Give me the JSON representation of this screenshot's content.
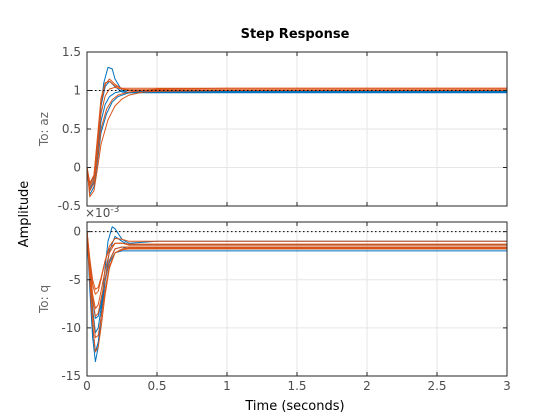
{
  "chart_data": {
    "type": "line",
    "title": "Step Response",
    "xlabel": "Time (seconds)",
    "ylabel": "Amplitude",
    "xlim": [
      0,
      3
    ],
    "x_ticks": [
      "0",
      "0.5",
      "1",
      "1.5",
      "2",
      "2.5",
      "3"
    ],
    "grid": true,
    "colors": {
      "series_a": "#0072bd",
      "series_b": "#d95319",
      "steady_state": "#000000"
    },
    "subplots": [
      {
        "output_label": "To: az",
        "ylim": [
          -0.5,
          1.5
        ],
        "y_ticks": [
          "-0.5",
          "0",
          "0.5",
          "1",
          "1.5"
        ],
        "steady_state": 1,
        "series": [
          {
            "color": "series_a",
            "x": [
              0,
              0.02,
              0.05,
              0.08,
              0.1,
              0.12,
              0.15,
              0.18,
              0.2,
              0.25,
              0.3,
              0.4,
              0.5,
              0.7,
              1.0,
              1.5,
              2.0,
              2.5,
              3.0
            ],
            "y": [
              0,
              -0.28,
              -0.18,
              0.3,
              0.8,
              1.1,
              1.3,
              1.28,
              1.15,
              1.0,
              0.97,
              0.97,
              0.97,
              0.97,
              0.97,
              0.97,
              0.97,
              0.97,
              0.97
            ]
          },
          {
            "color": "series_a",
            "x": [
              0,
              0.02,
              0.05,
              0.08,
              0.1,
              0.13,
              0.16,
              0.2,
              0.25,
              0.3,
              0.4,
              0.5,
              1.0,
              2.0,
              3.0
            ],
            "y": [
              0,
              -0.22,
              -0.12,
              0.4,
              0.8,
              1.05,
              1.12,
              1.05,
              0.98,
              0.97,
              0.98,
              0.98,
              0.98,
              0.98,
              0.98
            ]
          },
          {
            "color": "series_a",
            "x": [
              0,
              0.02,
              0.05,
              0.08,
              0.1,
              0.13,
              0.16,
              0.2,
              0.25,
              0.3,
              0.4,
              0.5,
              1.0,
              2.0,
              3.0
            ],
            "y": [
              0,
              -0.3,
              -0.2,
              0.25,
              0.6,
              0.82,
              0.92,
              0.97,
              0.99,
              1.0,
              1.0,
              1.0,
              1.0,
              1.0,
              1.0
            ]
          },
          {
            "color": "series_a",
            "x": [
              0,
              0.02,
              0.05,
              0.08,
              0.1,
              0.14,
              0.18,
              0.22,
              0.3,
              0.4,
              0.5,
              1.0,
              2.0,
              3.0
            ],
            "y": [
              0,
              -0.35,
              -0.25,
              0.15,
              0.45,
              0.7,
              0.85,
              0.92,
              0.97,
              0.99,
              0.99,
              0.99,
              0.99,
              0.99
            ]
          },
          {
            "color": "series_b",
            "x": [
              0,
              0.02,
              0.05,
              0.08,
              0.1,
              0.13,
              0.16,
              0.2,
              0.25,
              0.3,
              0.4,
              0.5,
              1.0,
              2.0,
              3.0
            ],
            "y": [
              0,
              -0.2,
              -0.1,
              0.45,
              0.85,
              1.08,
              1.15,
              1.08,
              1.02,
              1.0,
              1.0,
              1.02,
              1.03,
              1.03,
              1.03
            ]
          },
          {
            "color": "series_b",
            "x": [
              0,
              0.02,
              0.05,
              0.08,
              0.1,
              0.13,
              0.16,
              0.2,
              0.25,
              0.3,
              0.4,
              0.5,
              1.0,
              2.0,
              3.0
            ],
            "y": [
              0,
              -0.25,
              -0.15,
              0.35,
              0.7,
              0.93,
              1.02,
              1.04,
              1.02,
              1.01,
              1.01,
              1.01,
              1.01,
              1.01,
              1.01
            ]
          },
          {
            "color": "series_b",
            "x": [
              0,
              0.02,
              0.05,
              0.08,
              0.1,
              0.14,
              0.18,
              0.22,
              0.3,
              0.4,
              0.5,
              1.0,
              2.0,
              3.0
            ],
            "y": [
              0,
              -0.3,
              -0.2,
              0.2,
              0.5,
              0.76,
              0.88,
              0.94,
              0.98,
              1.0,
              1.0,
              1.0,
              1.0,
              1.0
            ]
          },
          {
            "color": "series_b",
            "x": [
              0,
              0.02,
              0.05,
              0.08,
              0.1,
              0.15,
              0.2,
              0.25,
              0.3,
              0.4,
              0.5,
              1.0,
              2.0,
              3.0
            ],
            "y": [
              0,
              -0.38,
              -0.3,
              0.05,
              0.3,
              0.62,
              0.8,
              0.89,
              0.94,
              0.98,
              0.99,
              1.0,
              1.0,
              1.0
            ]
          },
          {
            "color": "series_b",
            "x": [
              0,
              0.02,
              0.05,
              0.08,
              0.1,
              0.13,
              0.16,
              0.2,
              0.25,
              0.3,
              0.5,
              1.0,
              2.0,
              3.0
            ],
            "y": [
              0,
              -0.22,
              -0.1,
              0.5,
              0.9,
              1.1,
              1.12,
              1.06,
              1.03,
              1.03,
              1.03,
              1.03,
              1.03,
              1.03
            ]
          }
        ]
      },
      {
        "output_label": "To: q",
        "exponent_label": "×10",
        "exponent_power": "-3",
        "ylim": [
          -15,
          1
        ],
        "y_ticks": [
          "-15",
          "-10",
          "-5",
          "0"
        ],
        "steady_state": 0,
        "series": [
          {
            "color": "series_a",
            "x": [
              0,
              0.02,
              0.04,
              0.06,
              0.08,
              0.1,
              0.12,
              0.15,
              0.18,
              0.2,
              0.25,
              0.3,
              0.4,
              0.5,
              1.0,
              2.0,
              3.0
            ],
            "y": [
              0,
              -6,
              -11,
              -13.5,
              -12,
              -9,
              -5,
              -1,
              0.5,
              0.3,
              -0.8,
              -1.2,
              -1.1,
              -1.0,
              -1.0,
              -1.0,
              -1.0
            ]
          },
          {
            "color": "series_a",
            "x": [
              0,
              0.02,
              0.04,
              0.06,
              0.08,
              0.1,
              0.13,
              0.16,
              0.2,
              0.25,
              0.3,
              0.5,
              1.0,
              2.0,
              3.0
            ],
            "y": [
              0,
              -5,
              -10,
              -12.5,
              -11.5,
              -9,
              -5,
              -2,
              -0.5,
              -1.0,
              -1.4,
              -1.4,
              -1.4,
              -1.4,
              -1.4
            ]
          },
          {
            "color": "series_a",
            "x": [
              0,
              0.02,
              0.04,
              0.06,
              0.08,
              0.1,
              0.13,
              0.16,
              0.2,
              0.25,
              0.3,
              0.5,
              1.0,
              2.0,
              3.0
            ],
            "y": [
              0,
              -4,
              -8,
              -10.5,
              -10,
              -8,
              -5,
              -3,
              -1.8,
              -1.6,
              -1.8,
              -1.8,
              -1.8,
              -1.8,
              -1.8
            ]
          },
          {
            "color": "series_a",
            "x": [
              0,
              0.02,
              0.04,
              0.06,
              0.08,
              0.1,
              0.13,
              0.16,
              0.2,
              0.25,
              0.3,
              0.5,
              1.0,
              2.0,
              3.0
            ],
            "y": [
              0,
              -3.5,
              -7,
              -9,
              -8.8,
              -7.5,
              -5,
              -3.2,
              -2.2,
              -2.0,
              -2.0,
              -2.0,
              -2.0,
              -2.0,
              -2.0
            ]
          },
          {
            "color": "series_b",
            "x": [
              0,
              0.02,
              0.04,
              0.06,
              0.08,
              0.1,
              0.13,
              0.16,
              0.2,
              0.25,
              0.3,
              0.5,
              1.0,
              2.0,
              3.0
            ],
            "y": [
              0,
              -3,
              -5.5,
              -6.5,
              -6.2,
              -5,
              -3,
              -1.5,
              -0.7,
              -0.8,
              -1.0,
              -1.0,
              -1.0,
              -1.0,
              -1.0
            ]
          },
          {
            "color": "series_b",
            "x": [
              0,
              0.02,
              0.04,
              0.06,
              0.08,
              0.1,
              0.13,
              0.16,
              0.2,
              0.25,
              0.3,
              0.5,
              1.0,
              2.0,
              3.0
            ],
            "y": [
              0,
              -3.5,
              -6.5,
              -8,
              -7.6,
              -6.2,
              -4,
              -2.2,
              -1.2,
              -1.2,
              -1.4,
              -1.4,
              -1.4,
              -1.4,
              -1.4
            ]
          },
          {
            "color": "series_b",
            "x": [
              0,
              0.02,
              0.04,
              0.06,
              0.08,
              0.1,
              0.13,
              0.16,
              0.2,
              0.25,
              0.3,
              0.5,
              1.0,
              2.0,
              3.0
            ],
            "y": [
              0,
              -3.8,
              -7,
              -8.8,
              -8.5,
              -7,
              -4.8,
              -3,
              -1.8,
              -1.6,
              -1.6,
              -1.6,
              -1.6,
              -1.6,
              -1.6
            ]
          },
          {
            "color": "series_b",
            "x": [
              0,
              0.02,
              0.04,
              0.06,
              0.08,
              0.1,
              0.13,
              0.16,
              0.2,
              0.25,
              0.3,
              0.5,
              1.0,
              2.0,
              3.0
            ],
            "y": [
              0,
              -4.5,
              -8.5,
              -11,
              -10.8,
              -9,
              -6,
              -3.6,
              -2.2,
              -1.8,
              -1.7,
              -1.7,
              -1.7,
              -1.7,
              -1.7
            ]
          },
          {
            "color": "series_b",
            "x": [
              0,
              0.02,
              0.04,
              0.06,
              0.08,
              0.1,
              0.13,
              0.16,
              0.2,
              0.25,
              0.3,
              0.5,
              1.0,
              2.0,
              3.0
            ],
            "y": [
              0,
              -5,
              -9.5,
              -12.5,
              -12,
              -10,
              -6.5,
              -3.8,
              -2.2,
              -1.9,
              -1.8,
              -1.8,
              -1.8,
              -1.8,
              -1.8
            ]
          },
          {
            "color": "series_b",
            "x": [
              0,
              0.02,
              0.04,
              0.06,
              0.08,
              0.1,
              0.13,
              0.16,
              0.2,
              0.25,
              0.3,
              0.5,
              1.0,
              2.0,
              3.0
            ],
            "y": [
              0,
              -2.8,
              -5,
              -6,
              -5.8,
              -4.8,
              -3,
              -1.8,
              -1.2,
              -1.2,
              -1.3,
              -1.3,
              -1.3,
              -1.3,
              -1.3
            ]
          }
        ]
      }
    ]
  }
}
